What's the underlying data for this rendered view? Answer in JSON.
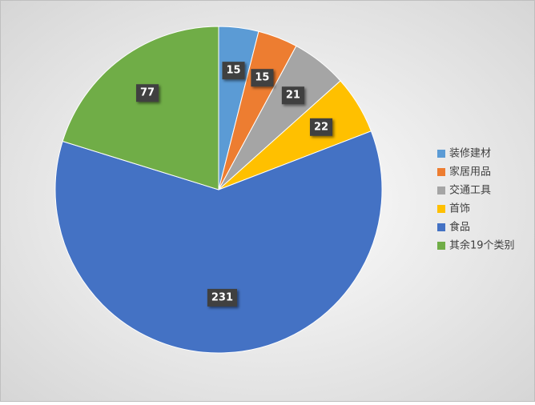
{
  "chart_data": {
    "type": "pie",
    "categories": [
      "装修建材",
      "家居用品",
      "交通工具",
      "首饰",
      "食品",
      "其余19个类别"
    ],
    "values": [
      15,
      15,
      21,
      22,
      231,
      77
    ],
    "colors": [
      "#5b9bd5",
      "#ed7d31",
      "#a5a5a5",
      "#ffc000",
      "#4472c4",
      "#70ad47"
    ],
    "legend": "right"
  }
}
